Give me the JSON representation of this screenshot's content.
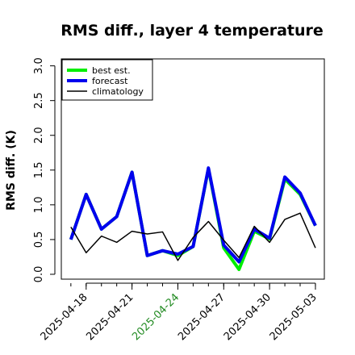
{
  "chart_data": {
    "type": "line",
    "title": "RMS diff., layer 4 temperature",
    "ylabel": "RMS diff. (K)",
    "xlabel": "",
    "ylim": [
      -0.07,
      3.1
    ],
    "yticks": [
      0.0,
      0.5,
      1.0,
      1.5,
      2.0,
      2.5,
      3.0
    ],
    "ytick_labels": [
      "0.0",
      "0.5",
      "1.0",
      "1.5",
      "2.0",
      "2.5",
      "3.0"
    ],
    "x": [
      "2025-04-17",
      "2025-04-18",
      "2025-04-19",
      "2025-04-20",
      "2025-04-21",
      "2025-04-22",
      "2025-04-23",
      "2025-04-24",
      "2025-04-25",
      "2025-04-26",
      "2025-04-27",
      "2025-04-28",
      "2025-04-29",
      "2025-04-30",
      "2025-05-01",
      "2025-05-02",
      "2025-05-03"
    ],
    "xlim": [
      "2025-04-16T09:00",
      "2025-05-03T14:00"
    ],
    "xticks": [
      "2025-04-18",
      "2025-04-21",
      "2025-04-24",
      "2025-04-27",
      "2025-04-30",
      "2025-05-03"
    ],
    "xtick_labels": [
      "2025-04-18",
      "2025-04-21",
      "2025-04-24",
      "2025-04-27",
      "2025-04-30",
      "2025-05-03"
    ],
    "xtick_colors": [
      "#000000",
      "#000000",
      "#228b22",
      "#000000",
      "#000000",
      "#000000"
    ],
    "series": [
      {
        "name": "best est.",
        "color": "#00ee00",
        "width": 4,
        "values": [
          0.5,
          1.15,
          0.65,
          0.83,
          1.47,
          0.27,
          0.34,
          0.27,
          0.4,
          1.52,
          0.38,
          0.07,
          0.62,
          0.51,
          1.37,
          1.15,
          0.7
        ]
      },
      {
        "name": "forecast",
        "color": "#0000ee",
        "width": 4,
        "values": [
          0.5,
          1.15,
          0.65,
          0.83,
          1.47,
          0.27,
          0.34,
          0.29,
          0.4,
          1.53,
          0.42,
          0.18,
          0.65,
          0.52,
          1.4,
          1.17,
          0.7
        ]
      },
      {
        "name": "climatology",
        "color": "#000000",
        "width": 1.5,
        "values": [
          0.68,
          0.31,
          0.55,
          0.46,
          0.62,
          0.58,
          0.61,
          0.2,
          0.53,
          0.76,
          0.49,
          0.24,
          0.69,
          0.46,
          0.79,
          0.88,
          0.38
        ]
      }
    ],
    "legend_position": "top-left",
    "grid": false
  }
}
